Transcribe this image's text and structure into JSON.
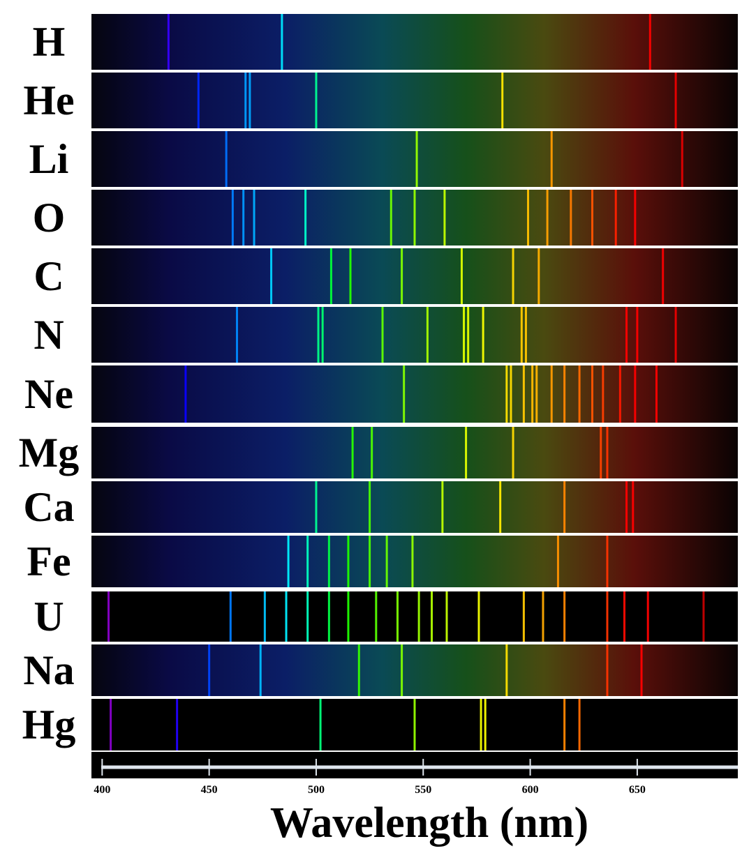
{
  "chart_data": {
    "type": "spectrum",
    "x_label": "Wavelength (nm)",
    "xlim": [
      395,
      697
    ],
    "xticks": [
      400,
      450,
      500,
      550,
      600,
      650
    ],
    "series": [
      {
        "name": "H",
        "values": [
          431,
          484,
          656
        ]
      },
      {
        "name": "He",
        "values": [
          445,
          467,
          469,
          500,
          587,
          668
        ]
      },
      {
        "name": "Li",
        "values": [
          458,
          547,
          610,
          671
        ]
      },
      {
        "name": "O",
        "values": [
          461,
          466,
          471,
          495,
          535,
          546,
          560,
          599,
          608,
          619,
          629,
          640,
          649
        ]
      },
      {
        "name": "C",
        "values": [
          479,
          507,
          516,
          540,
          568,
          592,
          604,
          662
        ]
      },
      {
        "name": "N",
        "values": [
          463,
          501,
          503,
          531,
          552,
          569,
          571,
          578,
          596,
          598,
          645,
          650,
          668
        ]
      },
      {
        "name": "Ne",
        "values": [
          439,
          541,
          589,
          591,
          597,
          601,
          603,
          610,
          616,
          623,
          629,
          634,
          642,
          649,
          659
        ]
      },
      {
        "name": "Mg",
        "values": [
          517,
          526,
          570,
          592,
          633,
          636
        ]
      },
      {
        "name": "Ca",
        "values": [
          500,
          525,
          559,
          586,
          616,
          645,
          648
        ]
      },
      {
        "name": "Fe",
        "values": [
          487,
          496,
          506,
          515,
          525,
          533,
          545,
          613,
          636
        ]
      },
      {
        "name": "U",
        "values": [
          403,
          460,
          476,
          486,
          496,
          506,
          515,
          528,
          538,
          548,
          554,
          561,
          576,
          597,
          606,
          616,
          636,
          644,
          655,
          681
        ]
      },
      {
        "name": "Na",
        "values": [
          450,
          474,
          520,
          540,
          589,
          636,
          652
        ]
      },
      {
        "name": "Hg",
        "values": [
          404,
          435,
          502,
          546,
          577,
          579,
          616,
          623
        ]
      }
    ]
  }
}
